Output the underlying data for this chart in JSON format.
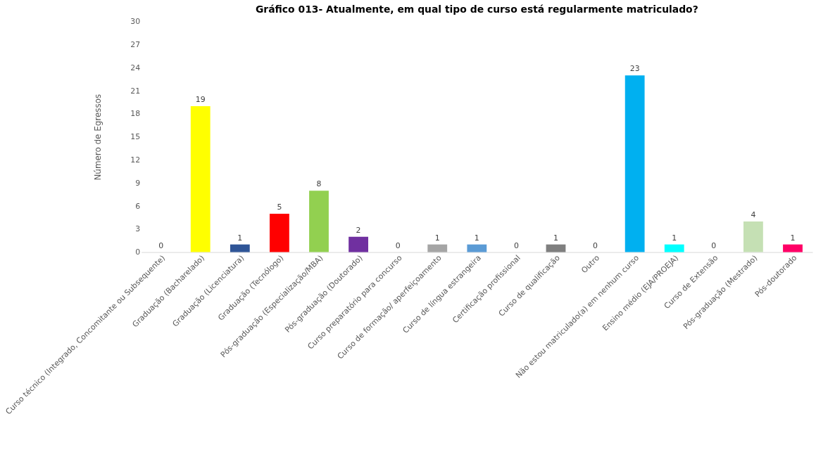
{
  "chart_data": {
    "type": "bar",
    "title": "Gráfico 013- Atualmente, em qual tipo de curso está regularmente matriculado?",
    "ylabel": "Número de Egressos",
    "categories": [
      "Curso técnico (Integrado, Concomitante ou Subsequente)",
      "Graduação (Bacharelado)",
      "Graduação (Licenciatura)",
      "Graduação (Tecnólogo)",
      "Pós-graduação  (Especialização/MBA)",
      "Pós-graduação (Doutorado)",
      "Curso preparatório para concurso",
      "Curso de formação/ aperfeiçoamento",
      "Curso de língua estrangeira",
      "Certificação profissional",
      "Curso de qualificação",
      "Outro",
      "Não estou matriculado(a) em nenhum curso",
      "Ensino médio (EJA/PROEJA)",
      "Curso de Extensão",
      "Pós-graduação (Mestrado)",
      "Pós-doutorado"
    ],
    "values": [
      0,
      19,
      1,
      5,
      8,
      2,
      0,
      1,
      1,
      0,
      1,
      0,
      23,
      1,
      0,
      4,
      1
    ],
    "colors": [
      "#4472c4",
      "#ffff00",
      "#2f5597",
      "#ff0000",
      "#92d050",
      "#7030a0",
      "#a5a5a5",
      "#a5a5a5",
      "#5b9bd5",
      "#ffc000",
      "#7f7f7f",
      "#70ad47",
      "#00b0f0",
      "#00ffff",
      "#ed7d31",
      "#c5e0b4",
      "#ff0066"
    ],
    "ylim": [
      0,
      30
    ],
    "yticks": [
      0,
      3,
      6,
      9,
      12,
      15,
      18,
      21,
      24,
      27,
      30
    ],
    "grid": false,
    "data_labels": true
  }
}
